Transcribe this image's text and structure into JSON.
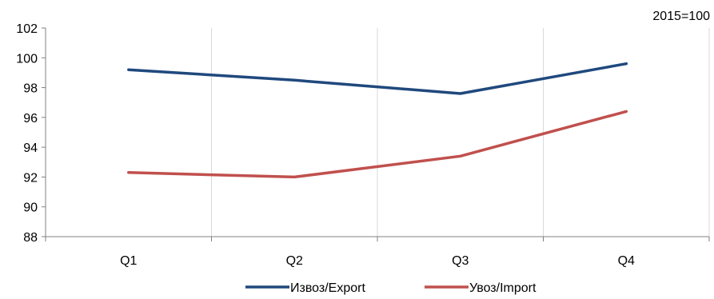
{
  "chart_data": {
    "type": "line",
    "note": "2015=100",
    "categories": [
      "Q1",
      "Q2",
      "Q3",
      "Q4"
    ],
    "series": [
      {
        "name": "Извоз/Export",
        "color": "#1f497d",
        "values": [
          99.2,
          98.5,
          97.6,
          99.6
        ]
      },
      {
        "name": "Увоз/Import",
        "color": "#c0504d",
        "values": [
          92.3,
          92.0,
          93.4,
          96.4
        ]
      }
    ],
    "y_ticks": [
      88,
      90,
      92,
      94,
      96,
      98,
      100,
      102
    ],
    "ylim": [
      88,
      102
    ],
    "grid": "vertical",
    "legend_position": "bottom"
  }
}
